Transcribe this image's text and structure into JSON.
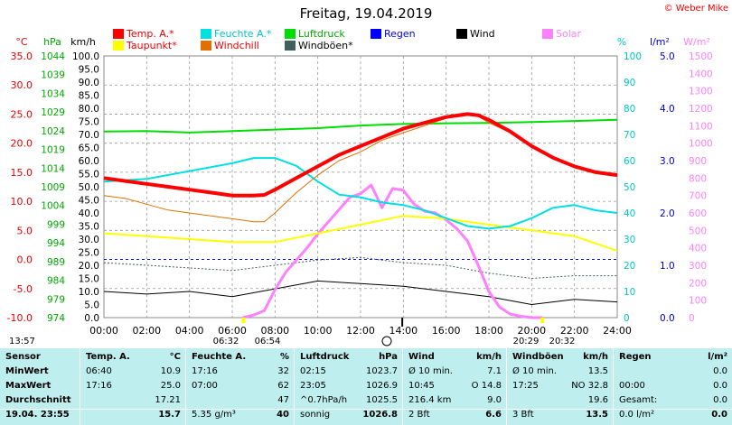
{
  "title": "Freitag, 19.04.2019",
  "copyright": "© Weber Mike",
  "legend": [
    {
      "label": "Temp. A.*",
      "color": "#ff0000"
    },
    {
      "label": "Feuchte A.*",
      "color": "#00e0e0"
    },
    {
      "label": "Luftdruck",
      "color": "#00dd00"
    },
    {
      "label": "Regen",
      "color": "#0000ff"
    },
    {
      "label": "Wind",
      "color": "#000000"
    },
    {
      "label": "Solar",
      "color": "#ff80ff"
    },
    {
      "label": "Taupunkt*",
      "color": "#ffff00"
    },
    {
      "label": "Windchill",
      "color": "#e07000"
    },
    {
      "label": "Windböen*",
      "color": "#406060"
    }
  ],
  "axis_units": {
    "temp": "°C",
    "press": "hPa",
    "wind": "km/h",
    "hum": "%",
    "rain": "l/m²",
    "solar": "W/m²"
  },
  "sun": {
    "sunrise": "06:32",
    "sunrise_end": "06:54",
    "sunset": "20:29",
    "sunset_end": "20:32"
  },
  "now_label": "13:57",
  "chart_data": {
    "type": "line",
    "x_ticks": [
      "00:00",
      "02:00",
      "04:00",
      "06:00",
      "08:00",
      "10:00",
      "12:00",
      "14:00",
      "16:00",
      "18:00",
      "20:00",
      "22:00",
      "24:00"
    ],
    "axes": {
      "temp": {
        "ticks": [
          "35.0",
          "30.0",
          "25.0",
          "20.0",
          "15.0",
          "10.0",
          "5.0",
          "0.0",
          "-5.0",
          "-10.0"
        ],
        "range": [
          -10,
          35
        ]
      },
      "press": {
        "ticks": [
          "1044",
          "1039",
          "1034",
          "1029",
          "1024",
          "1019",
          "1014",
          "1009",
          "1004",
          "999",
          "994",
          "989",
          "984",
          "979",
          "974"
        ],
        "range": [
          974,
          1044
        ]
      },
      "wind": {
        "ticks": [
          "100.0",
          "95.0",
          "90.0",
          "85.0",
          "80.0",
          "75.0",
          "70.0",
          "65.0",
          "60.0",
          "55.0",
          "50.0",
          "45.0",
          "40.0",
          "35.0",
          "30.0",
          "25.0",
          "20.0",
          "15.0",
          "10.0",
          "5.0",
          "0.0"
        ],
        "range": [
          0,
          100
        ]
      },
      "hum": {
        "ticks": [
          "100",
          "90",
          "80",
          "70",
          "60",
          "50",
          "40",
          "30",
          "20",
          "10",
          "0"
        ],
        "range": [
          0,
          100
        ]
      },
      "rain": {
        "ticks": [
          "5.0",
          "4.0",
          "3.0",
          "2.0",
          "1.0",
          "0.0"
        ],
        "range": [
          0,
          5
        ]
      },
      "solar": {
        "ticks": [
          "1500",
          "1400",
          "1300",
          "1200",
          "1100",
          "1000",
          "900",
          "800",
          "700",
          "600",
          "500",
          "400",
          "300",
          "200",
          "100",
          "0"
        ],
        "range": [
          0,
          1500
        ]
      }
    },
    "series": [
      {
        "name": "Temp. A.*",
        "axis": "temp",
        "color": "#ff0000",
        "width": 4,
        "x": [
          0,
          1,
          2,
          3,
          4,
          5,
          6,
          7,
          7.5,
          8,
          9,
          10,
          11,
          12,
          13,
          14,
          15,
          16,
          17,
          17.5,
          18,
          19,
          20,
          21,
          22,
          23,
          24
        ],
        "y": [
          14.0,
          13.5,
          13.0,
          12.5,
          12.0,
          11.5,
          11.0,
          11.0,
          11.1,
          12.0,
          14.0,
          16.0,
          18.0,
          19.5,
          21.0,
          22.5,
          23.5,
          24.5,
          25.0,
          24.8,
          24.0,
          22.0,
          19.5,
          17.5,
          16.0,
          15.0,
          14.5
        ]
      },
      {
        "name": "Windchill",
        "axis": "temp",
        "color": "#e07000",
        "width": 1,
        "x": [
          0,
          1,
          2,
          3,
          4,
          5,
          6,
          7,
          7.5,
          8,
          9,
          10,
          11,
          12,
          13,
          14,
          15,
          16,
          17,
          17.5,
          18,
          19,
          20,
          21,
          22,
          23,
          24
        ],
        "y": [
          11.0,
          10.5,
          9.5,
          8.5,
          8.0,
          7.5,
          7.0,
          6.5,
          6.5,
          8.0,
          11.5,
          14.5,
          17.0,
          18.5,
          20.5,
          21.8,
          23.0,
          24.3,
          25.0,
          24.6,
          23.5,
          21.8,
          19.5,
          17.5,
          16.0,
          15.0,
          14.3
        ]
      },
      {
        "name": "Feuchte A.*",
        "axis": "hum",
        "color": "#00e0e0",
        "width": 2,
        "x": [
          0,
          2,
          4,
          6,
          7,
          8,
          9,
          10,
          11,
          12,
          13,
          14,
          15,
          16,
          17,
          18,
          19,
          20,
          21,
          22,
          23,
          24
        ],
        "y": [
          52,
          53,
          56,
          59,
          61,
          61,
          58,
          52,
          47,
          46,
          44,
          43,
          41,
          38,
          35,
          34,
          35,
          38,
          42,
          43,
          41,
          40
        ]
      },
      {
        "name": "Luftdruck",
        "axis": "press",
        "color": "#00dd00",
        "width": 2,
        "x": [
          0,
          2,
          4,
          6,
          8,
          10,
          12,
          14,
          16,
          18,
          20,
          22,
          24
        ],
        "y": [
          1023.8,
          1023.9,
          1023.5,
          1023.9,
          1024.3,
          1024.7,
          1025.4,
          1025.8,
          1026.0,
          1026.1,
          1026.3,
          1026.6,
          1026.9
        ]
      },
      {
        "name": "Taupunkt*",
        "axis": "temp",
        "color": "#ffff00",
        "width": 2,
        "x": [
          0,
          2,
          4,
          6,
          8,
          10,
          12,
          14,
          16,
          17,
          18,
          19,
          20,
          22,
          24
        ],
        "y": [
          4.5,
          4.0,
          3.5,
          3.0,
          3.0,
          4.5,
          6.0,
          7.5,
          7.0,
          6.5,
          6.0,
          5.5,
          5.0,
          4.0,
          1.5
        ]
      },
      {
        "name": "Solar",
        "axis": "solar",
        "color": "#ff80ff",
        "width": 3,
        "x": [
          6.5,
          7,
          7.5,
          8,
          8.5,
          9,
          9.5,
          10,
          10.5,
          11,
          11.5,
          12,
          12.5,
          13,
          13.5,
          14,
          14.5,
          15,
          15.5,
          16,
          16.5,
          17,
          17.5,
          18,
          18.5,
          19,
          19.5,
          20,
          20.5
        ],
        "y": [
          0,
          15,
          40,
          160,
          260,
          330,
          400,
          480,
          550,
          620,
          690,
          710,
          760,
          630,
          740,
          730,
          650,
          610,
          600,
          560,
          510,
          440,
          300,
          150,
          60,
          20,
          8,
          0,
          0
        ]
      },
      {
        "name": "Windböen*",
        "axis": "wind",
        "color": "#406060",
        "width": 1,
        "dotted": true,
        "x": [
          0,
          2,
          4,
          6,
          8,
          10,
          12,
          14,
          16,
          18,
          20,
          22,
          24
        ],
        "y": [
          21,
          20,
          19,
          18,
          20,
          22,
          23,
          21,
          20,
          17,
          15,
          16,
          16
        ]
      },
      {
        "name": "Wind",
        "axis": "wind",
        "color": "#000000",
        "width": 1,
        "x": [
          0,
          2,
          4,
          6,
          8,
          10,
          12,
          14,
          16,
          18,
          20,
          22,
          24
        ],
        "y": [
          10,
          9,
          10,
          8,
          11,
          14,
          13,
          12,
          10,
          8,
          5,
          7,
          6
        ]
      }
    ]
  },
  "table": {
    "columns": [
      {
        "header": "Sensor",
        "unit": "",
        "rows": [
          {
            "label": "MinWert",
            "time": "",
            "value": ""
          },
          {
            "label": "MaxWert",
            "time": "",
            "value": ""
          },
          {
            "label": "Durchschnitt",
            "time": "",
            "value": ""
          }
        ],
        "last": {
          "label": "19.04. 23:55",
          "value": ""
        }
      },
      {
        "header": "Temp. A.",
        "unit": "°C",
        "rows": [
          {
            "label": "06:40",
            "value": "10.9"
          },
          {
            "label": "17:16",
            "value": "25.0"
          },
          {
            "label": "",
            "value": "17.21"
          }
        ],
        "last": {
          "label": "",
          "value": "15.7"
        }
      },
      {
        "header": "Feuchte A.",
        "unit": "%",
        "rows": [
          {
            "label": "17:16",
            "value": "32"
          },
          {
            "label": "07:00",
            "value": "62"
          },
          {
            "label": "",
            "value": "47"
          }
        ],
        "last": {
          "label": "5.35 g/m³",
          "value": "40"
        }
      },
      {
        "header": "Luftdruck",
        "unit": "hPa",
        "rows": [
          {
            "label": "02:15",
            "value": "1023.7"
          },
          {
            "label": "23:05",
            "value": "1026.9"
          },
          {
            "label": "^0.7hPa/h",
            "value": "1025.5"
          }
        ],
        "last": {
          "label": "sonnig",
          "value": "1026.8"
        }
      },
      {
        "header": "Wind",
        "unit": "km/h",
        "rows": [
          {
            "label": "Ø 10 min.",
            "value": "7.1"
          },
          {
            "label": "10:45",
            "value": "O 14.8"
          },
          {
            "label": "216.4 km",
            "value": "9.0"
          }
        ],
        "last": {
          "label": "2 Bft",
          "value": "6.6"
        }
      },
      {
        "header": "Windböen",
        "unit": "km/h",
        "rows": [
          {
            "label": "Ø 10 min.",
            "value": "13.5"
          },
          {
            "label": "17:25",
            "value": "NO 32.8"
          },
          {
            "label": "",
            "value": "19.6"
          }
        ],
        "last": {
          "label": "3 Bft",
          "value": "13.5"
        }
      },
      {
        "header": "Regen",
        "unit": "l/m²",
        "rows": [
          {
            "label": "",
            "value": "0.0"
          },
          {
            "label": "00:00",
            "value": "0.0"
          },
          {
            "label": "Gesamt:",
            "value": "0.0"
          }
        ],
        "last": {
          "label": "0.0 l/m²",
          "value": "0.0"
        }
      }
    ]
  }
}
